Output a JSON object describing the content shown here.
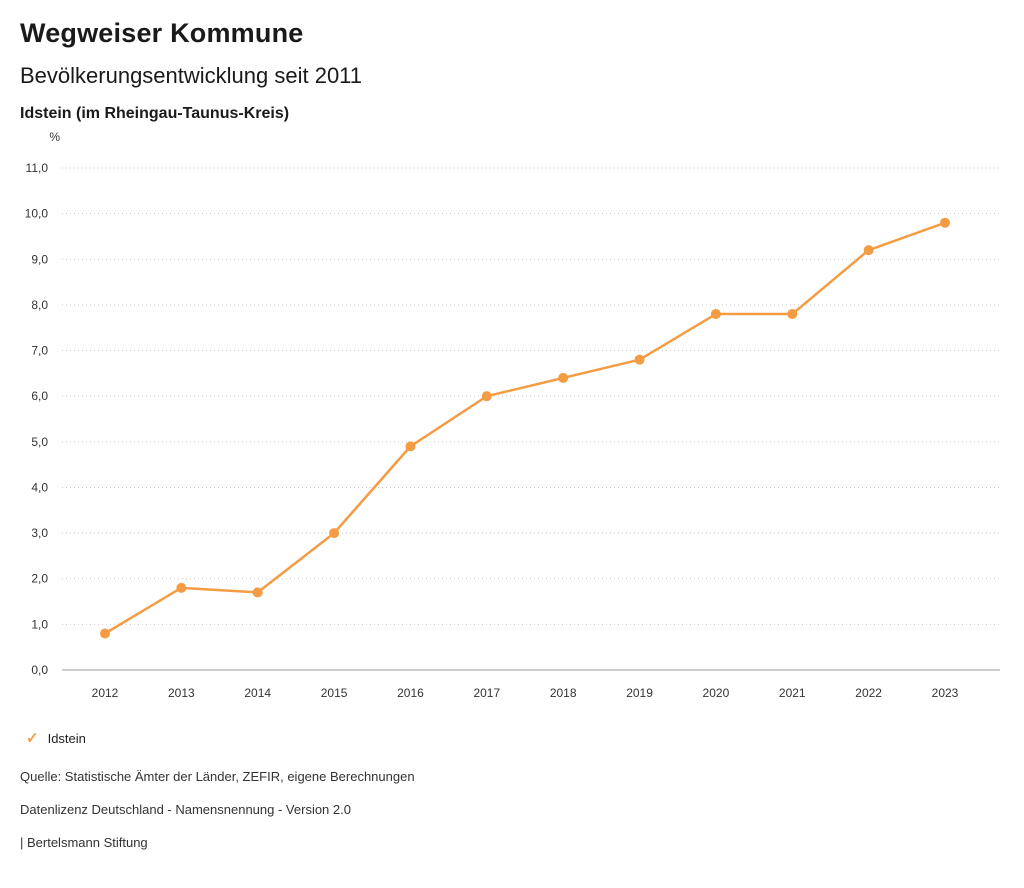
{
  "header": {
    "title": "Wegweiser Kommune",
    "subtitle": "Bevölkerungsentwicklung seit 2011",
    "location": "Idstein (im Rheingau-Taunus-Kreis)"
  },
  "chart_data": {
    "type": "line",
    "title": "Bevölkerungsentwicklung seit 2011",
    "subtitle": "Idstein (im Rheingau-Taunus-Kreis)",
    "unit_label": "%",
    "x": [
      2012,
      2013,
      2014,
      2015,
      2016,
      2017,
      2018,
      2019,
      2020,
      2021,
      2022,
      2023
    ],
    "series": [
      {
        "name": "Idstein",
        "color": "#f49c44",
        "values": [
          0.8,
          1.8,
          1.7,
          3.0,
          4.9,
          6.0,
          6.4,
          6.8,
          7.8,
          7.8,
          9.2,
          9.8
        ]
      }
    ],
    "ylim": [
      0,
      11
    ],
    "y_tick_step": 1,
    "y_tick_format": "decimal-comma-1",
    "grid": "dotted-horizontal",
    "legend_position": "bottom-left"
  },
  "legend": {
    "check": "✓",
    "label": "Idstein",
    "color": "#f49c44"
  },
  "footer": {
    "source": "Quelle: Statistische Ämter der Länder, ZEFIR, eigene Berechnungen",
    "license": "Datenlizenz Deutschland - Namensnennung - Version 2.0",
    "attribution": "| Bertelsmann Stiftung"
  }
}
